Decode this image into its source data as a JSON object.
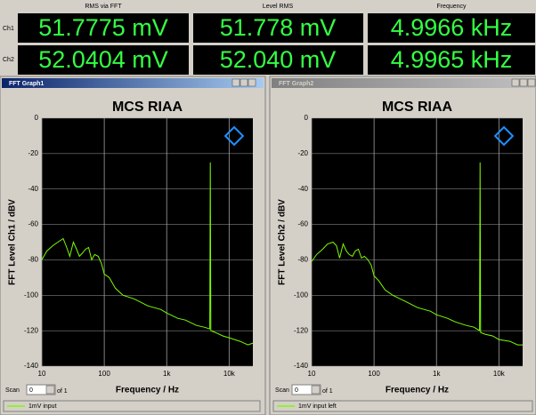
{
  "readout": {
    "headers": [
      "RMS via FFT",
      "Level RMS",
      "Frequency"
    ],
    "rows": [
      {
        "channel": "Ch1",
        "values": [
          "51.7775 mV",
          "51.778 mV",
          "4.9966 kHz"
        ]
      },
      {
        "channel": "Ch2",
        "values": [
          "52.0404 mV",
          "52.040 mV",
          "4.9965 kHz"
        ]
      }
    ]
  },
  "windows": [
    {
      "title": "FFT Graph1",
      "scan_label": "Scan",
      "scan_value": "0",
      "scan_of": "of 1"
    },
    {
      "title": "FFT Graph2",
      "scan_label": "Scan",
      "scan_value": "0",
      "scan_of": "of 1"
    }
  ],
  "chart_data": [
    {
      "type": "line",
      "title": "MCS RIAA",
      "x_label": "Frequency / Hz",
      "y_label": "FFT Level Ch1 / dBV",
      "log_x": true,
      "grid": true,
      "xlim": [
        10,
        24000
      ],
      "ylim": [
        -140,
        0
      ],
      "xticks": [
        10,
        100,
        {
          "value": 1000,
          "label": "1k"
        },
        {
          "value": 10000,
          "label": "10k"
        }
      ],
      "yticks": [
        0,
        -20,
        -40,
        -60,
        -80,
        -100,
        -120,
        -140
      ],
      "x": [
        10,
        12,
        15,
        18,
        22,
        25,
        28,
        32,
        36,
        40,
        45,
        50,
        56,
        63,
        70,
        80,
        90,
        100,
        120,
        150,
        200,
        300,
        500,
        800,
        1000,
        1500,
        2000,
        3000,
        4000,
        4900,
        4997,
        5100,
        6000,
        8000,
        10000,
        15000,
        20000,
        24000
      ],
      "series": [
        {
          "name": "1mV input",
          "color": "#7cfc00",
          "values": [
            -80,
            -75,
            -72,
            -70,
            -68,
            -73,
            -78,
            -70,
            -74,
            -78,
            -76,
            -74,
            -73,
            -80,
            -77,
            -78,
            -82,
            -88,
            -90,
            -96,
            -100,
            -102,
            -106,
            -108,
            -110,
            -113,
            -114,
            -117,
            -118,
            -119,
            -25,
            -120,
            -121,
            -123,
            -124,
            -126,
            -128,
            -127
          ]
        }
      ]
    },
    {
      "type": "line",
      "title": "MCS RIAA",
      "x_label": "Frequency / Hz",
      "y_label": "FFT Level Ch2 / dBV",
      "log_x": true,
      "grid": true,
      "xlim": [
        10,
        24000
      ],
      "ylim": [
        -140,
        0
      ],
      "xticks": [
        10,
        100,
        {
          "value": 1000,
          "label": "1k"
        },
        {
          "value": 10000,
          "label": "10k"
        }
      ],
      "yticks": [
        0,
        -20,
        -40,
        -60,
        -80,
        -100,
        -120,
        -140
      ],
      "x": [
        10,
        12,
        15,
        18,
        22,
        25,
        28,
        32,
        36,
        40,
        45,
        50,
        56,
        63,
        70,
        80,
        90,
        100,
        120,
        150,
        200,
        300,
        500,
        800,
        1000,
        1500,
        2000,
        3000,
        4000,
        4900,
        4997,
        5100,
        6000,
        8000,
        10000,
        15000,
        20000,
        24000
      ],
      "series": [
        {
          "name": "1mV input left",
          "color": "#7cfc00",
          "values": [
            -81,
            -77,
            -74,
            -71,
            -70,
            -72,
            -79,
            -71,
            -75,
            -77,
            -78,
            -75,
            -74,
            -79,
            -78,
            -80,
            -83,
            -89,
            -92,
            -97,
            -100,
            -103,
            -107,
            -109,
            -111,
            -113,
            -115,
            -117,
            -118,
            -120,
            -25,
            -121,
            -122,
            -123,
            -125,
            -126,
            -128,
            -128
          ]
        }
      ]
    }
  ]
}
